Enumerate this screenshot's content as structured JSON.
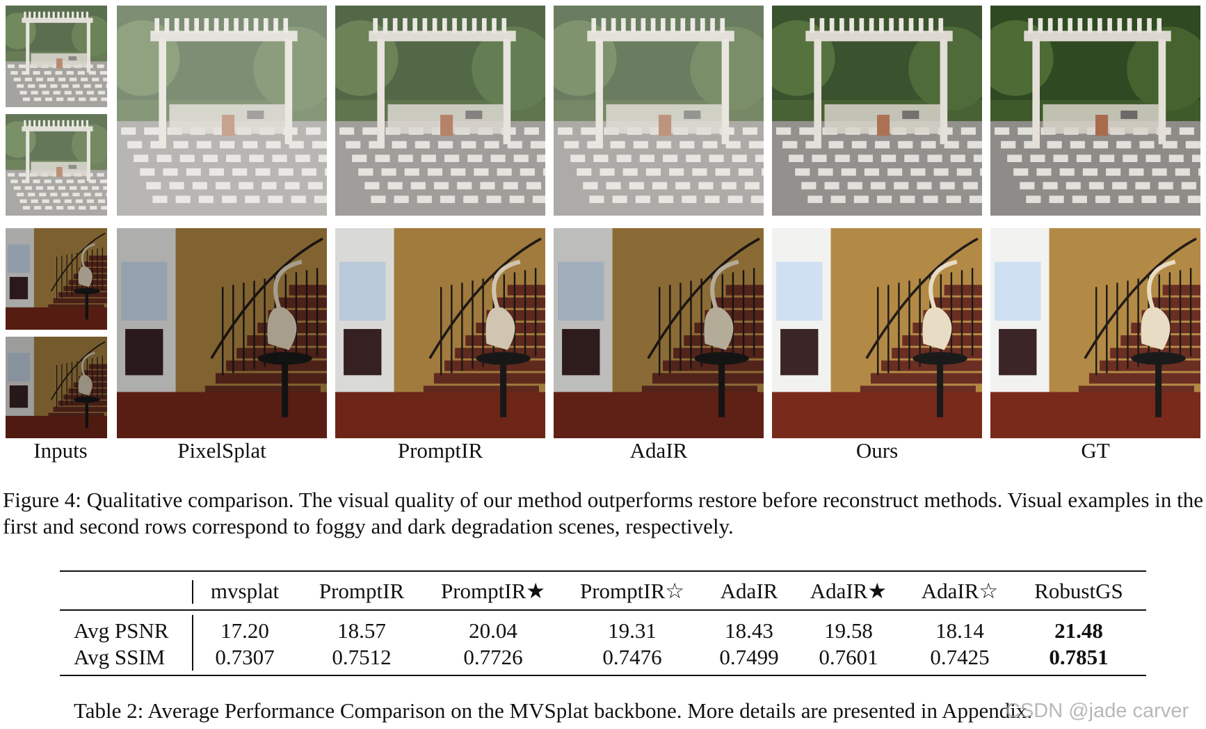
{
  "figure": {
    "column_labels": [
      "Inputs",
      "PixelSplat",
      "PromptIR",
      "AdaIR",
      "Ours",
      "GT"
    ],
    "rows": [
      "foggy",
      "dark"
    ],
    "caption": "Figure 4: Qualitative comparison. The visual quality of our method outperforms restore before reconstruct methods. Visual examples in the first and second rows correspond to foggy and dark degradation scenes, respectively."
  },
  "table": {
    "headers": [
      "",
      "mvsplat",
      "PromptIR",
      "PromptIR★",
      "PromptIR☆",
      "AdaIR",
      "AdaIR★",
      "AdaIR☆",
      "RobustGS"
    ],
    "rows": [
      {
        "label": "Avg PSNR",
        "values": [
          "17.20",
          "18.57",
          "20.04",
          "19.31",
          "18.43",
          "19.58",
          "18.14",
          "21.48"
        ]
      },
      {
        "label": "Avg SSIM",
        "values": [
          "0.7307",
          "0.7512",
          "0.7726",
          "0.7476",
          "0.7499",
          "0.7601",
          "0.7425",
          "0.7851"
        ]
      }
    ],
    "caption": "Table 2: Average Performance Comparison on the MVSplat backbone. More details are presented in Appendix."
  },
  "watermark": "CSDN @jade carver"
}
